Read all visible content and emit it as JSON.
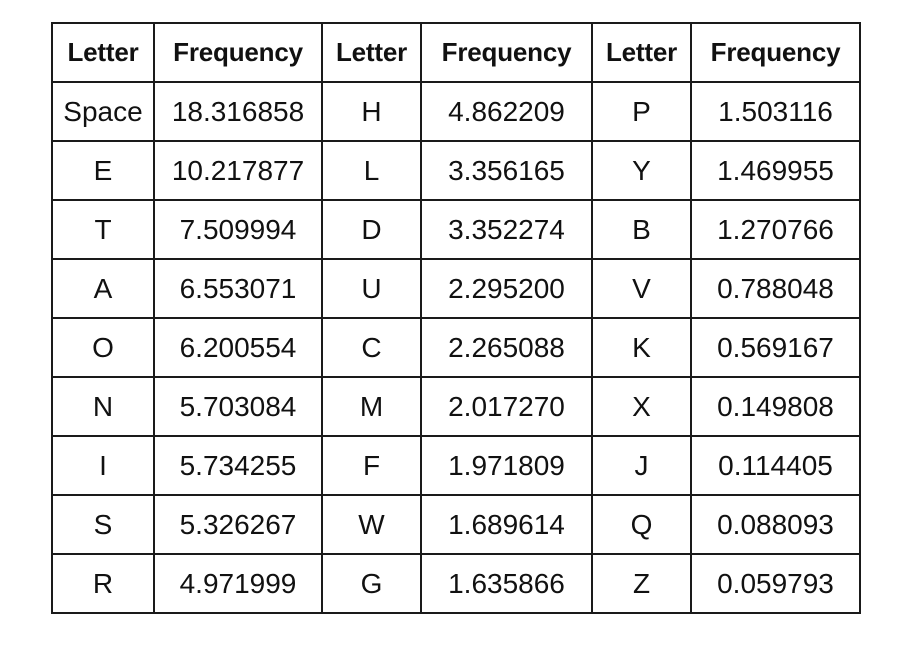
{
  "table": {
    "headers": [
      "Letter",
      "Frequency",
      "Letter",
      "Frequency",
      "Letter",
      "Frequency"
    ],
    "rows": [
      [
        "Space",
        "18.316858",
        "H",
        "4.862209",
        "P",
        "1.503116"
      ],
      [
        "E",
        "10.217877",
        "L",
        "3.356165",
        "Y",
        "1.469955"
      ],
      [
        "T",
        "7.509994",
        "D",
        "3.352274",
        "B",
        "1.270766"
      ],
      [
        "A",
        "6.553071",
        "U",
        "2.295200",
        "V",
        "0.788048"
      ],
      [
        "O",
        "6.200554",
        "C",
        "2.265088",
        "K",
        "0.569167"
      ],
      [
        "N",
        "5.703084",
        "M",
        "2.017270",
        "X",
        "0.149808"
      ],
      [
        "I",
        "5.734255",
        "F",
        "1.971809",
        "J",
        "0.114405"
      ],
      [
        "S",
        "5.326267",
        "W",
        "1.689614",
        "Q",
        "0.088093"
      ],
      [
        "R",
        "4.971999",
        "G",
        "1.635866",
        "Z",
        "0.059793"
      ]
    ]
  }
}
